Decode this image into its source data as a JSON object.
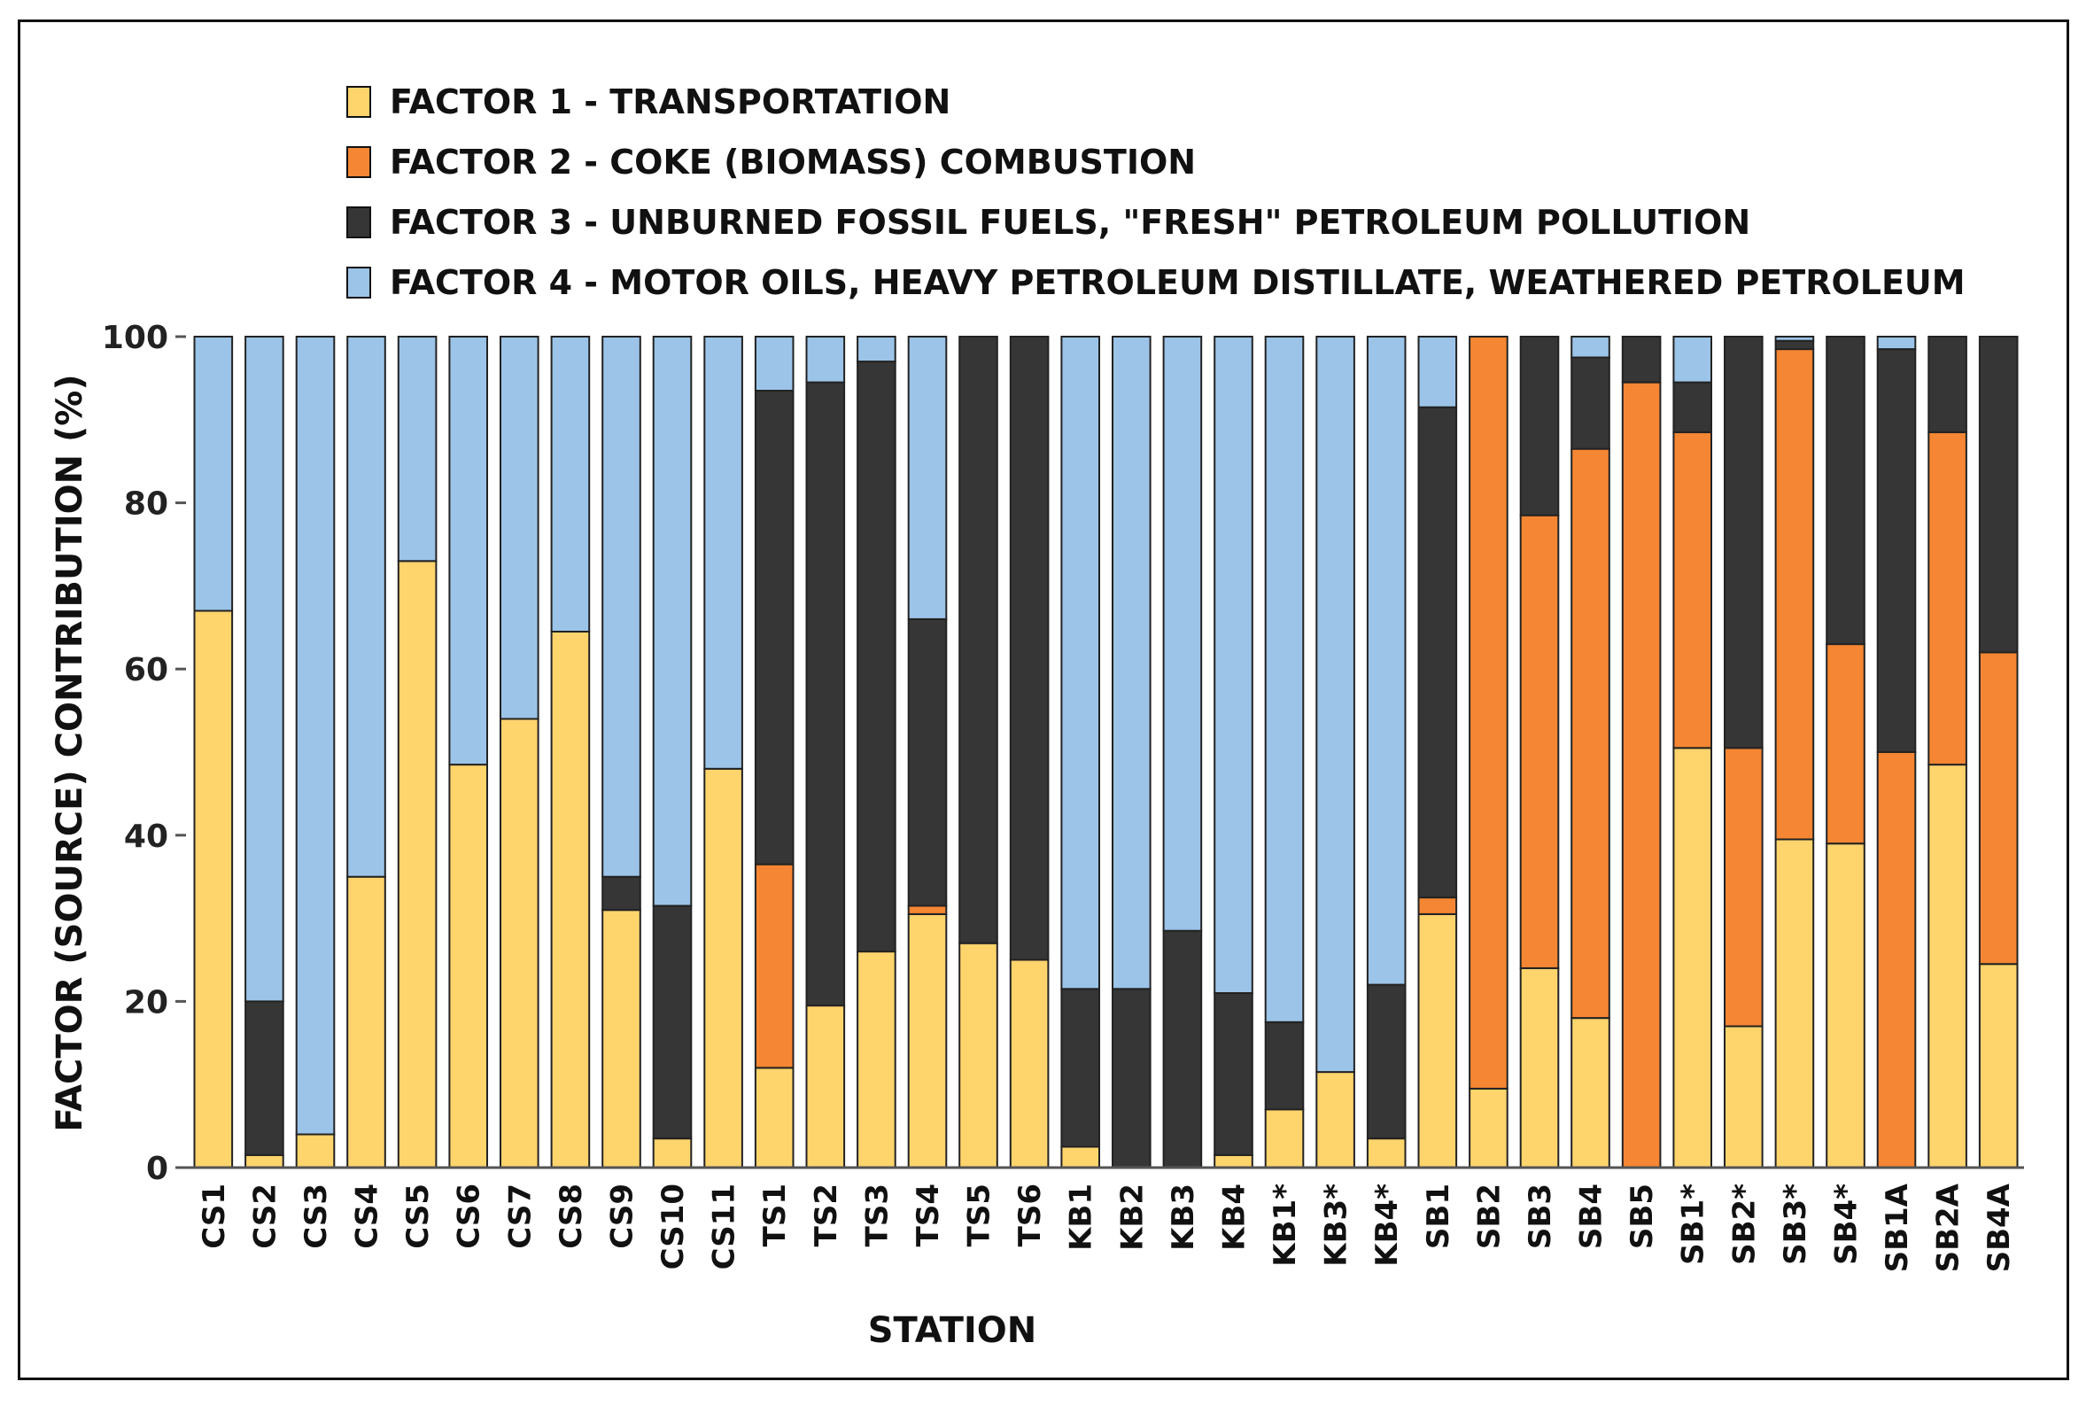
{
  "chart_data": {
    "type": "bar",
    "stacked": true,
    "xlabel": "STATION",
    "ylabel": "FACTOR (SOURCE) CONTRIBUTION (%)",
    "ylim": [
      0,
      100
    ],
    "yticks": [
      0,
      20,
      40,
      60,
      80,
      100
    ],
    "grid": false,
    "legend_position": "top",
    "categories": [
      "CS1",
      "CS2",
      "CS3",
      "CS4",
      "CS5",
      "CS6",
      "CS7",
      "CS8",
      "CS9",
      "CS10",
      "CS11",
      "TS1",
      "TS2",
      "TS3",
      "TS4",
      "TS5",
      "TS6",
      "KB1",
      "KB2",
      "KB3",
      "KB4",
      "KB1*",
      "KB3*",
      "KB4*",
      "SB1",
      "SB2",
      "SB3",
      "SB4",
      "SB5",
      "SB1*",
      "SB2*",
      "SB3*",
      "SB4*",
      "SB1A",
      "SB2A",
      "SB4A"
    ],
    "series": [
      {
        "name": "FACTOR 1 - TRANSPORTATION",
        "color": "#fed46d",
        "values": [
          67,
          1.5,
          4,
          35,
          73,
          48.5,
          54,
          64.5,
          31,
          3.5,
          48,
          12,
          19.5,
          26,
          30.5,
          27,
          25,
          2.5,
          0,
          0,
          1.5,
          7,
          11.5,
          3.5,
          30.5,
          9.5,
          24,
          18,
          0,
          50.5,
          17,
          39.5,
          39,
          0,
          48.5,
          24.5
        ]
      },
      {
        "name": "FACTOR 2 - COKE (BIOMASS) COMBUSTION",
        "color": "#f58633",
        "values": [
          0,
          0,
          0,
          0,
          0,
          0,
          0,
          0,
          0,
          0,
          0,
          24.5,
          0,
          0,
          1,
          0,
          0,
          0,
          0,
          0,
          0,
          0,
          0,
          0,
          2,
          90.5,
          54.5,
          68.5,
          94.5,
          38,
          33.5,
          59,
          24,
          50,
          40,
          37.5
        ]
      },
      {
        "name": "FACTOR 3 - UNBURNED FOSSIL FUELS, \"FRESH\" PETROLEUM  POLLUTION",
        "color": "#363636",
        "values": [
          0,
          18.5,
          0,
          0,
          0,
          0,
          0,
          0,
          4,
          28,
          0,
          57,
          75,
          71,
          34.5,
          73,
          75,
          19,
          21.5,
          28.5,
          19.5,
          10.5,
          0,
          18.5,
          59,
          0,
          21.5,
          11,
          5.5,
          6,
          49.5,
          1,
          37,
          48.5,
          11.5,
          38
        ]
      },
      {
        "name": "FACTOR 4 - MOTOR OILS, HEAVY PETROLEUM DISTILLATE, WEATHERED  PETROLEUM",
        "color": "#9cc4e8",
        "values": [
          33,
          80,
          96,
          65,
          27,
          51.5,
          46,
          35.5,
          65,
          68.5,
          52,
          6.5,
          5.5,
          3,
          34,
          0,
          0,
          78.5,
          78.5,
          71.5,
          79,
          82.5,
          88.5,
          78,
          8.5,
          0,
          0,
          2.5,
          0,
          5.5,
          0,
          0.5,
          0,
          1.5,
          0,
          0
        ]
      }
    ]
  }
}
